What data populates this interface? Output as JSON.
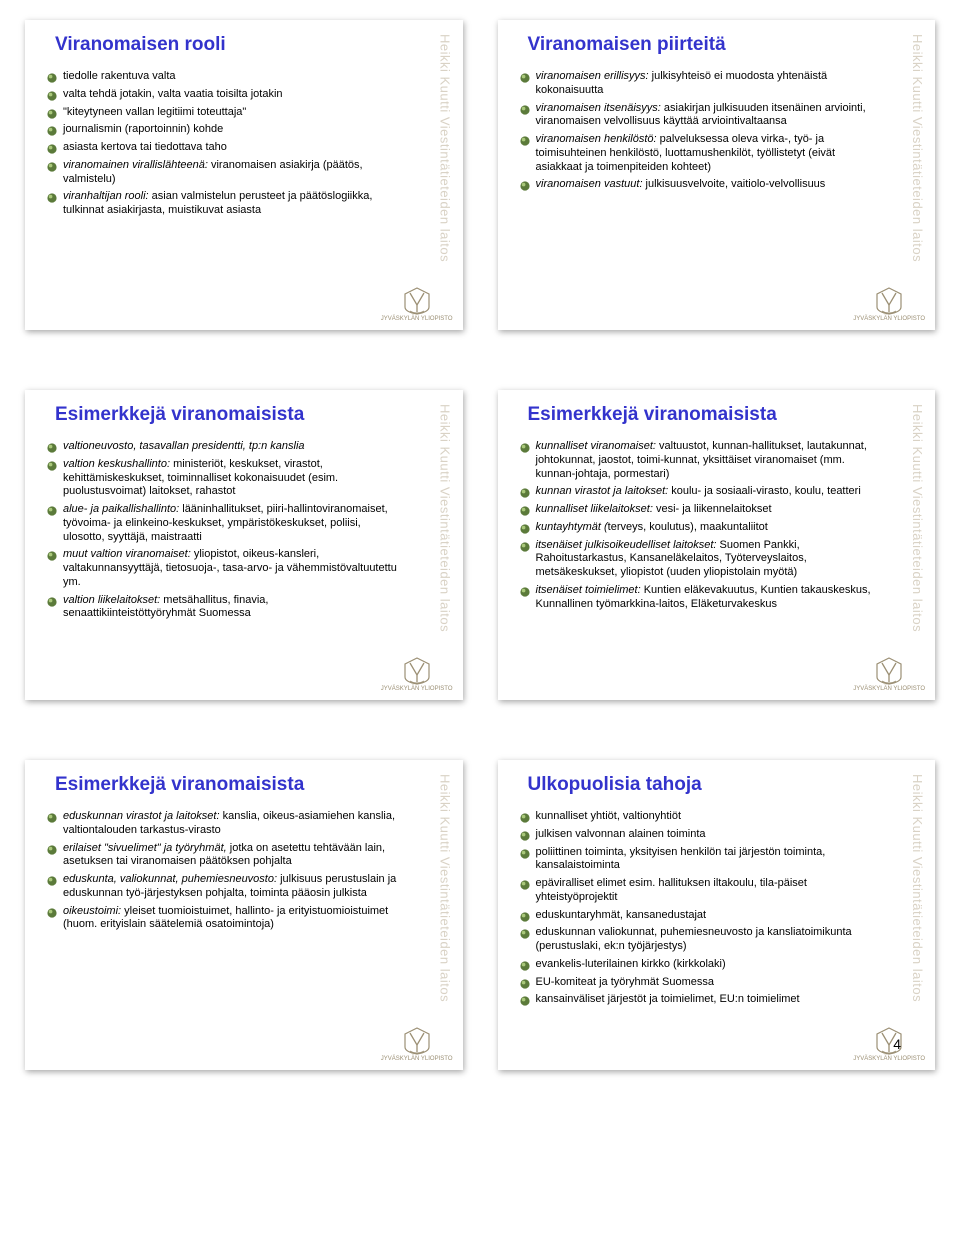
{
  "page_number": "4",
  "side_text": "Heikki Kuutti Viestintätieteiden laitos",
  "logo_text": "JYVÄSKYLÄN YLIOPISTO",
  "colors": {
    "title": "#3333cc",
    "side": "#d9d2c5",
    "body": "#000000",
    "bullet_fill": "#5b7a3a",
    "bullet_hi": "#a9c87a",
    "logo": "#9b8f74",
    "bg": "#ffffff"
  },
  "slides": [
    {
      "title": "Viranomaisen rooli",
      "bullets": [
        {
          "plain": "tiedolle rakentuva valta"
        },
        {
          "plain": "valta tehdä jotakin, valta vaatia toisilta jotakin"
        },
        {
          "plain": "\"kiteytyneen vallan legitiimi toteuttaja\""
        },
        {
          "plain": "journalismin (raportoinnin) kohde"
        },
        {
          "plain": "asiasta kertova tai tiedottava taho"
        },
        {
          "italic": "viranomainen virallislähteenä:",
          "rest": " viranomaisen asiakirja (päätös, valmistelu)"
        },
        {
          "italic": "viranhaltijan rooli:",
          "rest": " asian valmistelun perusteet ja päätöslogiikka, tulkinnat asiakirjasta, muistikuvat asiasta"
        }
      ]
    },
    {
      "title": "Viranomaisen piirteitä",
      "bullets": [
        {
          "italic": "viranomaisen erillisyys:",
          "rest": " julkisyhteisö ei muodosta yhtenäistä kokonaisuutta"
        },
        {
          "italic": "viranomaisen itsenäisyys:",
          "rest": " asiakirjan julkisuuden itsenäinen arviointi, viranomaisen velvollisuus käyttää arviointivaltaansa"
        },
        {
          "italic": "viranomaisen henkilöstö:",
          "rest": " palveluksessa oleva virka-, työ- ja toimisuhteinen henkilöstö, luottamushenkilöt, työllistetyt (eivät asiakkaat ja toimenpiteiden kohteet)"
        },
        {
          "italic": "viranomaisen vastuut:",
          "rest": " julkisuusvelvoite, vaitiolo-velvollisuus"
        }
      ]
    },
    {
      "title": "Esimerkkejä viranomaisista",
      "bullets": [
        {
          "italic": "valtioneuvosto, tasavallan presidentti, tp:n kanslia",
          "rest": ""
        },
        {
          "italic": "valtion keskushallinto:",
          "rest": " ministeriöt, keskukset, virastot, kehittämiskeskukset, toiminnalliset kokonaisuudet (esim. puolustusvoimat) laitokset, rahastot"
        },
        {
          "italic": "alue- ja paikallishallinto:",
          "rest": " lääninhallitukset, piiri-hallintoviranomaiset, työvoima- ja elinkeino-keskukset, ympäristökeskukset, poliisi, ulosotto, syyttäjä, maistraatti"
        },
        {
          "italic": "muut valtion viranomaiset:",
          "rest": " yliopistot, oikeus-kansleri, valtakunnansyyttäjä, tietosuoja-, tasa-arvo- ja vähemmistövaltuutettu ym."
        },
        {
          "italic": "valtion liikelaitokset:",
          "rest": "  metsähallitus, finavia, senaattikiinteistöttyöryhmät Suomessa"
        }
      ]
    },
    {
      "title": "Esimerkkejä viranomaisista",
      "bullets": [
        {
          "italic": "kunnalliset viranomaiset:",
          "rest": " valtuustot, kunnan-hallitukset, lautakunnat, johtokunnat, jaostot, toimi-kunnat, yksittäiset viranomaiset (mm. kunnan-johtaja, pormestari)"
        },
        {
          "italic": "kunnan virastot ja laitokset:",
          "rest": " koulu- ja sosiaali-virasto, koulu, teatteri"
        },
        {
          "italic": "kunnalliset liikelaitokset:",
          "rest": " vesi- ja liikennelaitokset"
        },
        {
          "italic": "kuntayhtymät (",
          "rest": "terveys, koulutus), maakuntaliitot",
          "italic2": ")"
        },
        {
          "italic": "itsenäiset julkisoikeudelliset laitokset:",
          "rest": " Suomen Pankki, Rahoitustarkastus, Kansaneläkelaitos, Työterveyslaitos, metsäkeskukset, yliopistot (uuden yliopistolain myötä)"
        },
        {
          "italic": "itsenäiset toimielimet:",
          "rest": " Kuntien eläkevakuutus, Kuntien takauskeskus, Kunnallinen työmarkkina-laitos, Eläketurvakeskus"
        }
      ]
    },
    {
      "title": "Esimerkkejä viranomaisista",
      "bullets": [
        {
          "italic": "eduskunnan virastot ja laitokset:",
          "rest": " kanslia, oikeus-asiamiehen kanslia, valtiontalouden tarkastus-virasto"
        },
        {
          "italic": "erilaiset \"sivuelimet\" ja työryhmät,",
          "rest": " jotka on asetettu tehtävään lain, asetuksen tai viranomaisen päätöksen pohjalta"
        },
        {
          "italic": "eduskunta, valiokunnat, puhemiesneuvosto:",
          "rest": " julkisuus perustuslain ja eduskunnan työ-järjestyksen pohjalta, toiminta pääosin julkista"
        },
        {
          "italic": "oikeustoimi:",
          "rest": " yleiset tuomioistuimet, hallinto- ja erityistuomioistuimet (huom. erityislain säätelemiä osatoimintoja)"
        }
      ]
    },
    {
      "title": "Ulkopuolisia tahoja",
      "bullets": [
        {
          "plain": "kunnalliset yhtiöt, valtionyhtiöt"
        },
        {
          "plain": "julkisen valvonnan alainen toiminta"
        },
        {
          "plain": "poliittinen toiminta, yksityisen henkilön tai järjestön toiminta, kansalaistoiminta"
        },
        {
          "plain": "epäviralliset elimet esim. hallituksen iltakoulu, tila-päiset yhteistyöprojektit"
        },
        {
          "plain": "eduskuntaryhmät, kansanedustajat"
        },
        {
          "plain": "eduskunnan valiokunnat, puhemiesneuvosto ja kansliatoimikunta (perustuslaki, ek:n työjärjestys)"
        },
        {
          "plain": "evankelis-luterilainen kirkko (kirkkolaki)"
        },
        {
          "plain": "EU-komiteat ja työryhmät Suomessa"
        },
        {
          "plain": "kansainväliset järjestöt ja toimielimet, EU:n toimielimet"
        }
      ]
    }
  ]
}
